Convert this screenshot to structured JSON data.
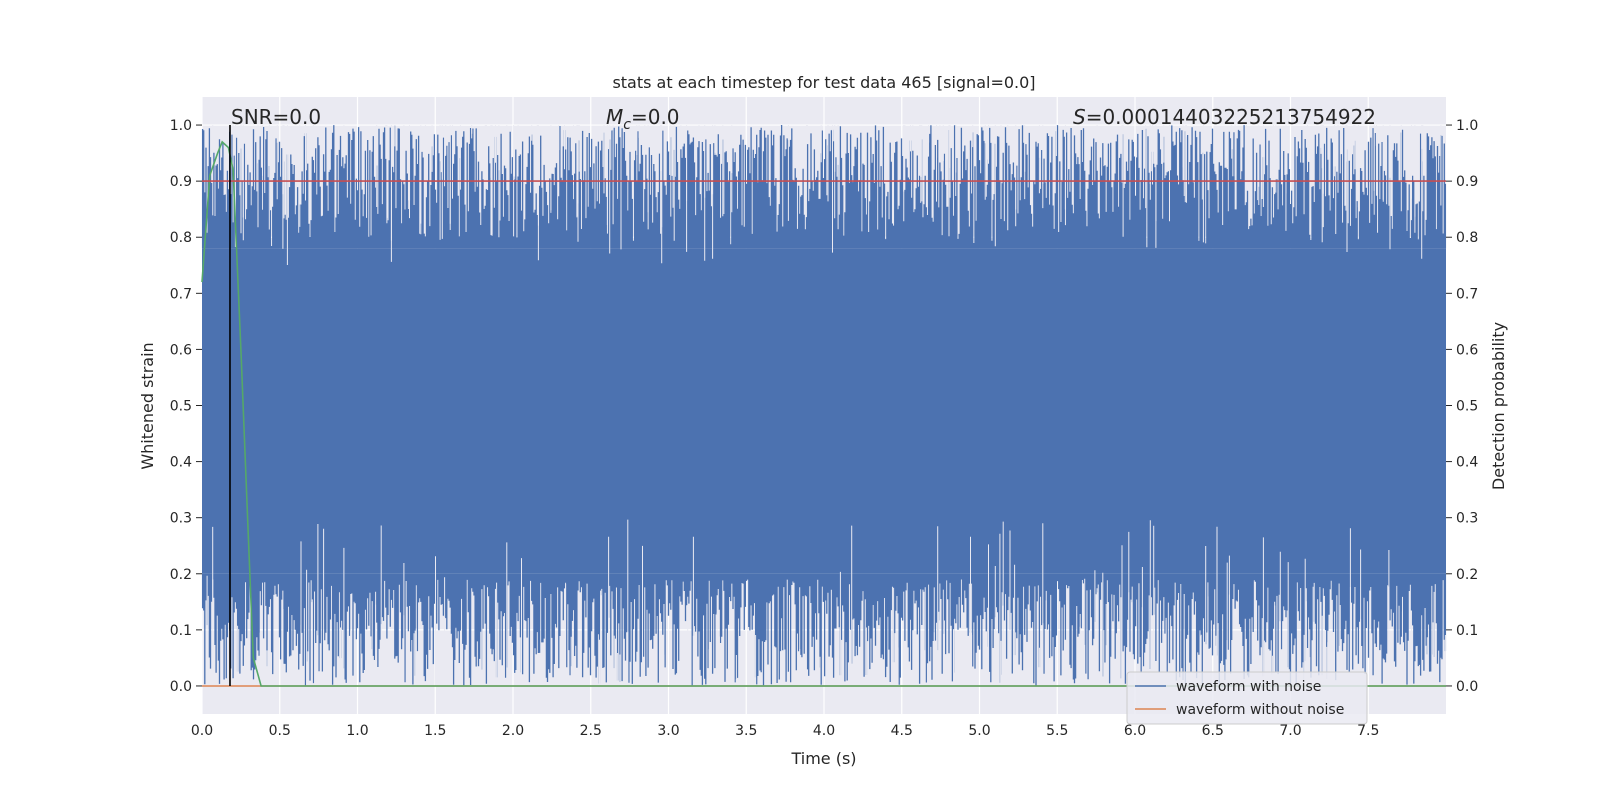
{
  "chart_data": {
    "type": "line",
    "title": "stats at each timestep for test data 465 [signal=0.0]",
    "xlabel": "Time (s)",
    "ylabel": "Whitened strain",
    "ylabel_right": "Detection probability",
    "xlim": [
      0.0,
      8.0
    ],
    "ylim": [
      -0.05,
      1.05
    ],
    "x_ticks": [
      0.0,
      0.5,
      1.0,
      1.5,
      2.0,
      2.5,
      3.0,
      3.5,
      4.0,
      4.5,
      5.0,
      5.5,
      6.0,
      6.5,
      7.0,
      7.5
    ],
    "x_tick_labels": [
      "0.0",
      "0.5",
      "1.0",
      "1.5",
      "2.0",
      "2.5",
      "3.0",
      "3.5",
      "4.0",
      "4.5",
      "5.0",
      "5.5",
      "6.0",
      "6.5",
      "7.0",
      "7.5"
    ],
    "y_ticks": [
      0.0,
      0.1,
      0.2,
      0.3,
      0.4,
      0.5,
      0.6,
      0.7,
      0.8,
      0.9,
      1.0
    ],
    "y_tick_labels": [
      "0.0",
      "0.1",
      "0.2",
      "0.3",
      "0.4",
      "0.5",
      "0.6",
      "0.7",
      "0.8",
      "0.9",
      "1.0"
    ],
    "grid": true,
    "annotations": {
      "snr": "SNR=0.0",
      "mc_symbol": "M",
      "mc_subscript": "c",
      "mc_value": "=0.0",
      "s_symbol": "S",
      "s_value": "=0.00014403225213754922"
    },
    "legend": {
      "placement": "lower-right",
      "entries": [
        "waveform with noise",
        "waveform without noise"
      ]
    },
    "vline_x": 0.18,
    "threshold_y": 0.9,
    "series": [
      {
        "name": "waveform with noise",
        "color": "#4c72b0",
        "style": "dense-noise",
        "upper_band": [
          0.78,
          1.0
        ],
        "lower_band": [
          0.0,
          0.2
        ]
      },
      {
        "name": "waveform without noise",
        "color": "#dd8452",
        "x": [
          0.0,
          8.0
        ],
        "y": [
          0.0,
          0.0
        ]
      },
      {
        "color": "#55a868",
        "x": [
          0.0,
          0.05,
          0.1,
          0.13,
          0.17,
          0.2,
          0.25,
          0.3,
          0.33,
          0.36,
          0.38,
          8.0
        ],
        "y": [
          0.72,
          0.91,
          0.95,
          0.97,
          0.96,
          0.92,
          0.6,
          0.25,
          0.05,
          0.02,
          0.0,
          0.0
        ]
      },
      {
        "color": "#c44e52",
        "x": [
          0.0,
          8.0
        ],
        "y": [
          0.9,
          0.9
        ]
      }
    ]
  }
}
